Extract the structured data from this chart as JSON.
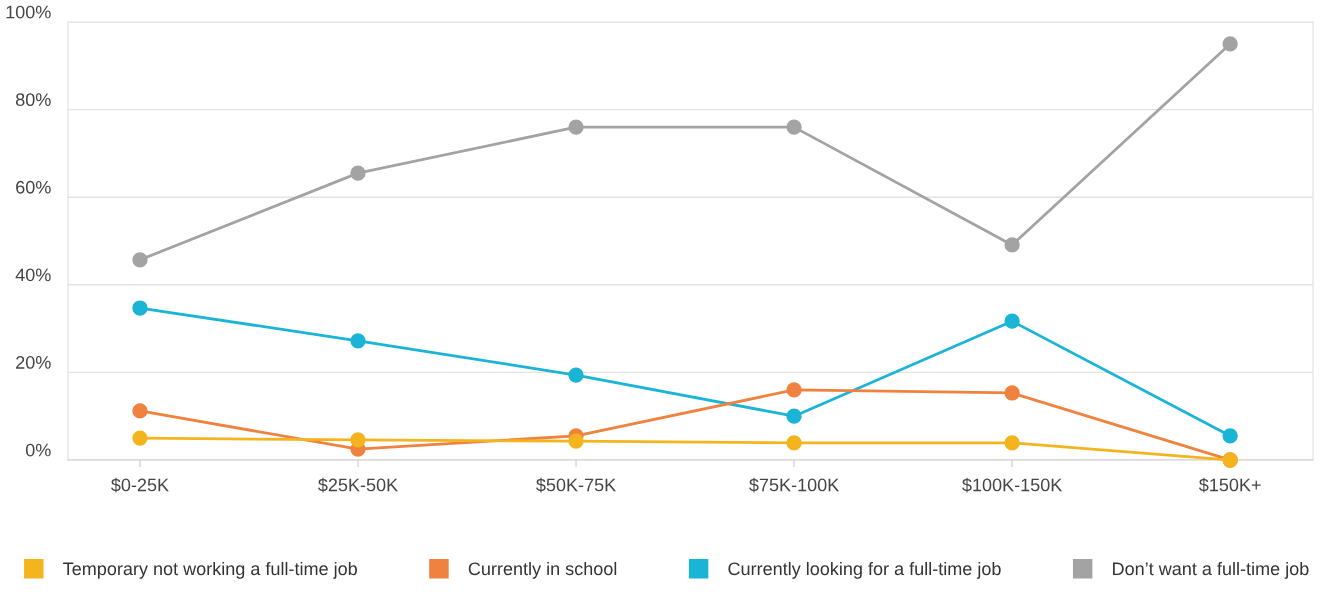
{
  "chart_data": {
    "type": "line",
    "categories": [
      "$0-25K",
      "$25K-50K",
      "$50K-75K",
      "$75K-100K",
      "$100K-150K",
      "$150K+"
    ],
    "series": [
      {
        "name": "Temporary not working a full-time job",
        "color": "#f4b41e",
        "values": [
          5.0,
          4.6,
          4.3,
          3.9,
          3.9,
          0
        ]
      },
      {
        "name": "Currently in school",
        "color": "#f0823f",
        "values": [
          11.2,
          2.5,
          5.5,
          16.0,
          15.3,
          0
        ]
      },
      {
        "name": "Currently looking for a full-time job",
        "color": "#1ab4d6",
        "values": [
          34.7,
          27.2,
          19.4,
          10.0,
          31.7,
          5.5
        ]
      },
      {
        "name": "Don’t want a full-time job",
        "color": "#a3a3a3",
        "values": [
          45.7,
          65.5,
          76.0,
          76.0,
          49.1,
          95.0
        ]
      }
    ],
    "ylim": [
      0,
      100
    ],
    "yticks": [
      {
        "value": 0,
        "label": "0%"
      },
      {
        "value": 20,
        "label": "20%"
      },
      {
        "value": 40,
        "label": "40%"
      },
      {
        "value": 60,
        "label": "60%"
      },
      {
        "value": 80,
        "label": "80%"
      },
      {
        "value": 100,
        "label": "100%"
      }
    ],
    "grid": "y",
    "legend": "bottom",
    "marker": "circle",
    "line_style": "solid"
  }
}
